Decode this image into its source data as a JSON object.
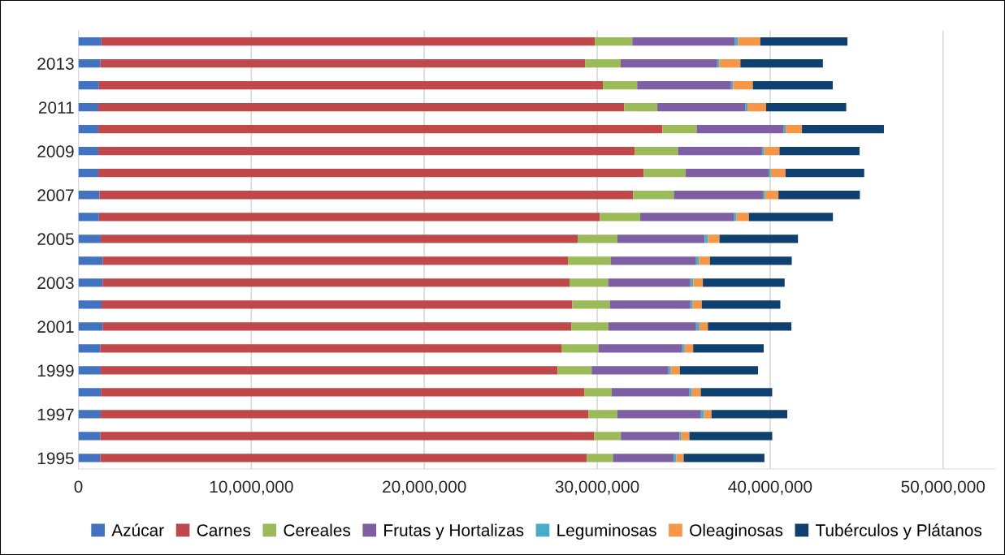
{
  "chart_data": {
    "type": "bar",
    "orientation": "horizontal",
    "stacked": true,
    "categories": [
      null,
      "2013",
      null,
      "2011",
      null,
      "2009",
      null,
      "2007",
      null,
      "2005",
      null,
      "2003",
      null,
      "2001",
      null,
      "1999",
      null,
      "1997",
      null,
      "1995"
    ],
    "series": [
      {
        "name": "Azúcar",
        "color": "#4273c0",
        "values": [
          1330000,
          1270000,
          1190000,
          1150000,
          1150000,
          1150000,
          1150000,
          1220000,
          1190000,
          1290000,
          1400000,
          1400000,
          1340000,
          1400000,
          1270000,
          1290000,
          1300000,
          1290000,
          1270000,
          1270000
        ]
      },
      {
        "name": "Carnes",
        "color": "#c0474a",
        "values": [
          28530000,
          28030000,
          29140000,
          30410000,
          32620000,
          31020000,
          31540000,
          30860000,
          28960000,
          27580000,
          26910000,
          27000000,
          27220000,
          27100000,
          26660000,
          26420000,
          27950000,
          28200000,
          28560000,
          28120000
        ]
      },
      {
        "name": "Cereales",
        "color": "#9bbb59",
        "values": [
          2170000,
          2060000,
          1980000,
          1920000,
          1980000,
          2500000,
          2430000,
          2350000,
          2340000,
          2300000,
          2480000,
          2230000,
          2170000,
          2150000,
          2150000,
          1970000,
          1590000,
          1680000,
          1540000,
          1520000
        ]
      },
      {
        "name": "Frutas y Hortalizas",
        "color": "#7f5fa3",
        "values": [
          5940000,
          5580000,
          5430000,
          5070000,
          5040000,
          4860000,
          4790000,
          5150000,
          5400000,
          5050000,
          4930000,
          4760000,
          4660000,
          5070000,
          4840000,
          4440000,
          4500000,
          4830000,
          3390000,
          3510000
        ]
      },
      {
        "name": "Leguminosas",
        "color": "#4bacc6",
        "values": [
          180000,
          130000,
          120000,
          140000,
          110000,
          130000,
          130000,
          130000,
          170000,
          190000,
          170000,
          170000,
          140000,
          190000,
          140000,
          140000,
          140000,
          180000,
          110000,
          150000
        ]
      },
      {
        "name": "Oleaginosas",
        "color": "#f79646",
        "values": [
          1280000,
          1210000,
          1140000,
          1080000,
          940000,
          880000,
          850000,
          770000,
          710000,
          660000,
          630000,
          550000,
          520000,
          490000,
          490000,
          520000,
          510000,
          430000,
          460000,
          430000
        ]
      },
      {
        "name": "Tubérculos y Plátanos",
        "color": "#0e4170",
        "values": [
          5040000,
          4770000,
          4620000,
          4630000,
          4740000,
          4630000,
          4550000,
          4710000,
          4860000,
          4540000,
          4730000,
          4730000,
          4540000,
          4830000,
          4080000,
          4520000,
          4130000,
          4380000,
          4790000,
          4670000
        ]
      }
    ],
    "xlim": [
      0,
      53000000
    ],
    "xticks": [
      0,
      {
        "value": 10000000,
        "label": "10,000,000"
      },
      {
        "value": 20000000,
        "label": "20,000,000"
      },
      {
        "value": 30000000,
        "label": "30,000,000"
      },
      {
        "value": 40000000,
        "label": "40,000,000"
      },
      {
        "value": 50000000,
        "label": "50,000,000"
      }
    ],
    "grid": "x",
    "legend": "bottom"
  }
}
